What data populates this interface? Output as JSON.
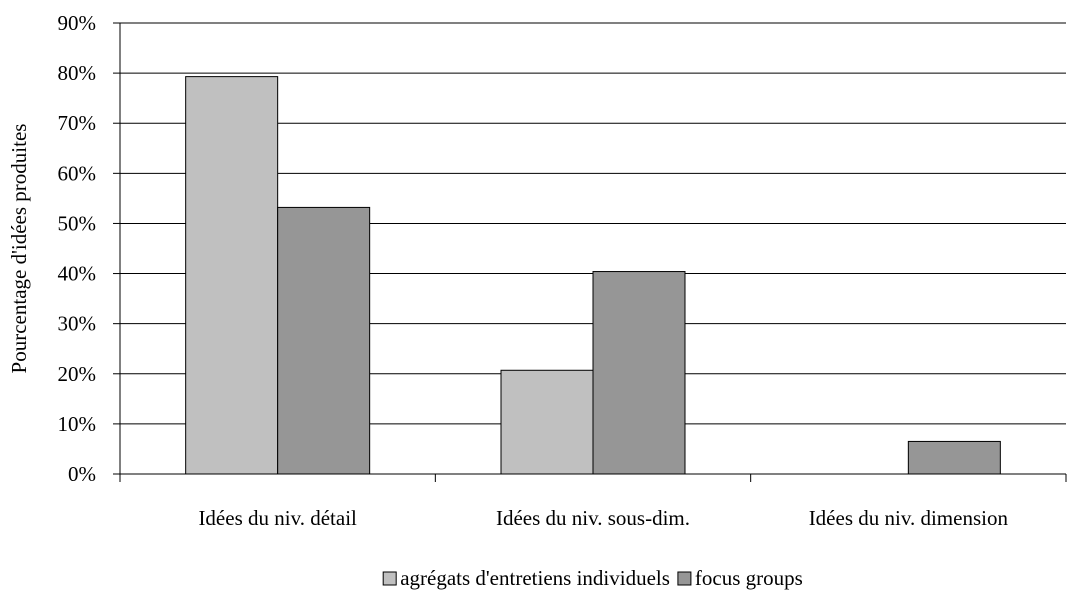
{
  "chart_data": {
    "type": "bar",
    "title": "",
    "xlabel": "",
    "ylabel": "Pourcentage d'idées produites",
    "categories": [
      "Idées du niv. détail",
      "Idées du niv. sous-dim.",
      "Idées du niv. dimension"
    ],
    "series": [
      {
        "name": "agrégats d'entretiens individuels",
        "color": "#c0c0c0",
        "values": [
          79.3,
          20.7,
          0
        ]
      },
      {
        "name": "focus groups",
        "color": "#969696",
        "values": [
          53.2,
          40.4,
          6.5
        ]
      }
    ],
    "ylim": [
      0,
      90
    ],
    "yticks": [
      0,
      10,
      20,
      30,
      40,
      50,
      60,
      70,
      80,
      90
    ],
    "ytick_labels": [
      "0%",
      "10%",
      "20%",
      "30%",
      "40%",
      "50%",
      "60%",
      "70%",
      "80%",
      "90%"
    ],
    "grid": true,
    "legend_position": "bottom"
  }
}
